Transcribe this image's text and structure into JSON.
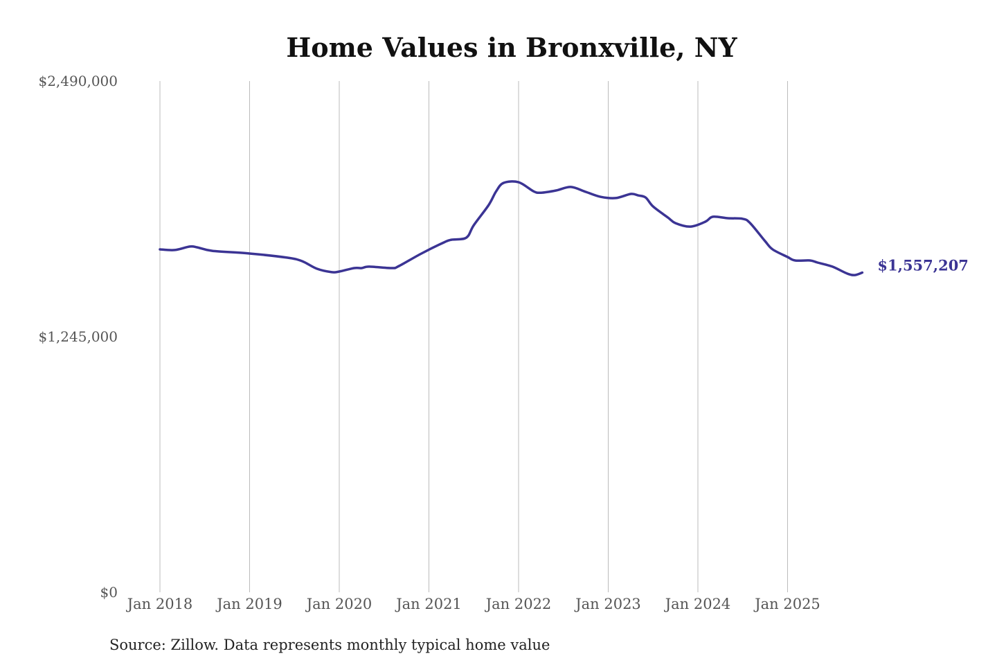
{
  "chart_data": {
    "type": "line",
    "title": "Home Values in Bronxville, NY",
    "xlabel": "",
    "ylabel": "",
    "ylim": [
      0,
      2490000
    ],
    "y_ticks": [
      {
        "value": 0,
        "label": "$0"
      },
      {
        "value": 1245000,
        "label": "$1,245,000"
      },
      {
        "value": 2490000,
        "label": "$2,490,000"
      }
    ],
    "x_ticks": [
      {
        "date": "2018-01",
        "label": "Jan 2018"
      },
      {
        "date": "2019-01",
        "label": "Jan 2019"
      },
      {
        "date": "2020-01",
        "label": "Jan 2020"
      },
      {
        "date": "2021-01",
        "label": "Jan 2021"
      },
      {
        "date": "2022-01",
        "label": "Jan 2022"
      },
      {
        "date": "2023-01",
        "label": "Jan 2023"
      },
      {
        "date": "2024-01",
        "label": "Jan 2024"
      },
      {
        "date": "2025-01",
        "label": "Jan 2025"
      }
    ],
    "grid": "vertical",
    "line_color": "#3b3494",
    "end_label": "$1,557,207",
    "source": "Source: Zillow. Data represents monthly typical home value",
    "series": [
      {
        "name": "Typical home value",
        "points": [
          [
            "2018-01",
            1670000
          ],
          [
            "2018-03",
            1667000
          ],
          [
            "2018-05",
            1684000
          ],
          [
            "2018-06",
            1680000
          ],
          [
            "2018-08",
            1663000
          ],
          [
            "2019-01",
            1650000
          ],
          [
            "2019-06",
            1630000
          ],
          [
            "2019-08",
            1613000
          ],
          [
            "2019-10",
            1576000
          ],
          [
            "2019-12",
            1559000
          ],
          [
            "2020-01",
            1562000
          ],
          [
            "2020-03",
            1579000
          ],
          [
            "2020-04",
            1579000
          ],
          [
            "2020-05",
            1586000
          ],
          [
            "2020-08",
            1579000
          ],
          [
            "2020-09",
            1589000
          ],
          [
            "2020-12",
            1650000
          ],
          [
            "2021-03",
            1704000
          ],
          [
            "2021-04",
            1717000
          ],
          [
            "2021-06",
            1727000
          ],
          [
            "2021-07",
            1788000
          ],
          [
            "2021-09",
            1886000
          ],
          [
            "2021-10",
            1953000
          ],
          [
            "2021-11",
            1994000
          ],
          [
            "2022-01",
            1997000
          ],
          [
            "2022-03",
            1953000
          ],
          [
            "2022-04",
            1946000
          ],
          [
            "2022-06",
            1957000
          ],
          [
            "2022-08",
            1974000
          ],
          [
            "2022-10",
            1950000
          ],
          [
            "2022-12",
            1926000
          ],
          [
            "2023-02",
            1920000
          ],
          [
            "2023-04",
            1940000
          ],
          [
            "2023-05",
            1933000
          ],
          [
            "2023-06",
            1923000
          ],
          [
            "2023-07",
            1879000
          ],
          [
            "2023-09",
            1825000
          ],
          [
            "2023-10",
            1798000
          ],
          [
            "2023-12",
            1781000
          ],
          [
            "2024-02",
            1805000
          ],
          [
            "2024-03",
            1829000
          ],
          [
            "2024-05",
            1822000
          ],
          [
            "2024-07",
            1819000
          ],
          [
            "2024-08",
            1798000
          ],
          [
            "2024-10",
            1710000
          ],
          [
            "2024-11",
            1670000
          ],
          [
            "2025-01",
            1633000
          ],
          [
            "2025-02",
            1616000
          ],
          [
            "2025-04",
            1616000
          ],
          [
            "2025-05",
            1606000
          ],
          [
            "2025-07",
            1586000
          ],
          [
            "2025-09",
            1552000
          ],
          [
            "2025-10",
            1545000
          ],
          [
            "2025-11",
            1557207
          ]
        ]
      }
    ]
  }
}
